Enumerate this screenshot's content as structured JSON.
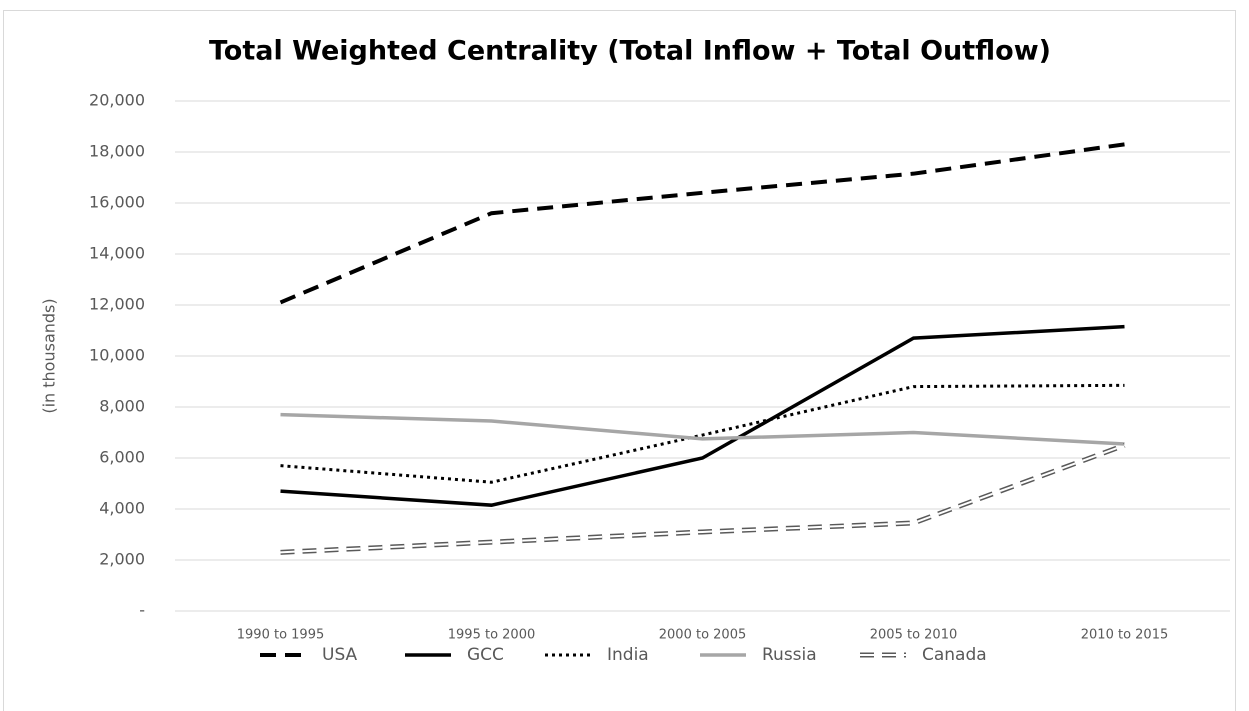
{
  "chart_data": {
    "type": "line",
    "title": "Total Weighted Centrality (Total Inflow + Total Outflow)",
    "y_label": "(in thousands)",
    "categories": [
      "1990 to 1995",
      "1995 to 2000",
      "2000 to 2005",
      "2005 to 2010",
      "2010 to 2015"
    ],
    "series": [
      {
        "name": "USA",
        "color": "#000000",
        "style": "dashed",
        "values": [
          12100,
          15600,
          16400,
          17150,
          18300
        ]
      },
      {
        "name": "GCC",
        "color": "#000000",
        "style": "solid",
        "values": [
          4700,
          4150,
          6000,
          10700,
          11150
        ]
      },
      {
        "name": "India",
        "color": "#000000",
        "style": "dotted",
        "values": [
          5700,
          5050,
          6900,
          8800,
          8850
        ]
      },
      {
        "name": "Russia",
        "color": "#a6a6a6",
        "style": "solid",
        "values": [
          7700,
          7450,
          6750,
          7000,
          6550
        ]
      },
      {
        "name": "Canada",
        "color": "#595959",
        "style": "double-dashed",
        "values": [
          2300,
          2700,
          3100,
          3450,
          6500
        ]
      }
    ],
    "ylim": [
      0,
      20000
    ],
    "yticks": [
      {
        "value": 0,
        "label": "-"
      },
      {
        "value": 2000,
        "label": "2,000"
      },
      {
        "value": 4000,
        "label": "4,000"
      },
      {
        "value": 6000,
        "label": "6,000"
      },
      {
        "value": 8000,
        "label": "8,000"
      },
      {
        "value": 10000,
        "label": "10,000"
      },
      {
        "value": 12000,
        "label": "12,000"
      },
      {
        "value": 14000,
        "label": "14,000"
      },
      {
        "value": 16000,
        "label": "16,000"
      },
      {
        "value": 18000,
        "label": "18,000"
      },
      {
        "value": 20000,
        "label": "20,000"
      }
    ],
    "grid": true,
    "legend": "bottom"
  }
}
